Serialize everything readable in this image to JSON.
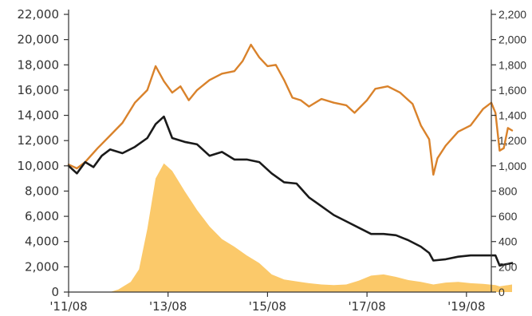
{
  "chart_data": {
    "type": "line",
    "title": "",
    "xlabel": "",
    "ylabel": "",
    "ylabel_right": "",
    "grid": false,
    "legend": "none",
    "left_axis": {
      "ylim": [
        0,
        22000
      ],
      "ticks": [
        "0",
        "2,000",
        "4,000",
        "6,000",
        "8,000",
        "10,000",
        "12,000",
        "14,000",
        "16,000",
        "18,000",
        "20,000",
        "22,000"
      ]
    },
    "right_axis": {
      "ylim": [
        0,
        2200
      ],
      "ticks": [
        "0",
        "200",
        "400",
        "600",
        "800",
        "1,000",
        "1,200",
        "1,400",
        "1,600",
        "1,800",
        "2,000",
        "2,200"
      ]
    },
    "x_axis": {
      "xlim": [
        "2011-08",
        "2020-02"
      ],
      "ticks": [
        {
          "label": "'11/08",
          "date": "2011-08"
        },
        {
          "label": "'13/08",
          "date": "2013-08"
        },
        {
          "label": "'15/08",
          "date": "2015-08"
        },
        {
          "label": "'17/08",
          "date": "2017-08"
        },
        {
          "label": "'19/08",
          "date": "2019-08"
        }
      ]
    },
    "colors": {
      "orange": "#d9822b",
      "black": "#1a1a1a",
      "area": "#fbc96a"
    },
    "series": [
      {
        "type": "line",
        "axis": "left",
        "color": "#d9822b",
        "points": [
          [
            "2011-08",
            10100
          ],
          [
            "2011-10",
            9800
          ],
          [
            "2011-12",
            10300
          ],
          [
            "2012-03",
            11400
          ],
          [
            "2012-06",
            12400
          ],
          [
            "2012-09",
            13400
          ],
          [
            "2012-12",
            15000
          ],
          [
            "2013-03",
            16000
          ],
          [
            "2013-05",
            17900
          ],
          [
            "2013-07",
            16700
          ],
          [
            "2013-09",
            15800
          ],
          [
            "2013-11",
            16300
          ],
          [
            "2014-01",
            15200
          ],
          [
            "2014-03",
            16000
          ],
          [
            "2014-06",
            16800
          ],
          [
            "2014-09",
            17300
          ],
          [
            "2014-12",
            17500
          ],
          [
            "2015-02",
            18300
          ],
          [
            "2015-04",
            19600
          ],
          [
            "2015-06",
            18600
          ],
          [
            "2015-08",
            17900
          ],
          [
            "2015-10",
            18000
          ],
          [
            "2015-12",
            16800
          ],
          [
            "2016-02",
            15400
          ],
          [
            "2016-04",
            15200
          ],
          [
            "2016-06",
            14700
          ],
          [
            "2016-09",
            15300
          ],
          [
            "2016-12",
            15000
          ],
          [
            "2017-03",
            14800
          ],
          [
            "2017-05",
            14200
          ],
          [
            "2017-08",
            15200
          ],
          [
            "2017-10",
            16100
          ],
          [
            "2018-01",
            16300
          ],
          [
            "2018-04",
            15800
          ],
          [
            "2018-07",
            14900
          ],
          [
            "2018-09",
            13200
          ],
          [
            "2018-11",
            12100
          ],
          [
            "2018-12",
            9300
          ],
          [
            "2019-01",
            10600
          ],
          [
            "2019-03",
            11600
          ],
          [
            "2019-06",
            12700
          ],
          [
            "2019-09",
            13200
          ],
          [
            "2019-12",
            14500
          ],
          [
            "2020-02",
            15000
          ],
          [
            "2020-03",
            14200
          ],
          [
            "2020-04",
            11200
          ],
          [
            "2020-05",
            11400
          ],
          [
            "2020-06",
            13000
          ],
          [
            "2020-07",
            12800
          ]
        ]
      },
      {
        "type": "line",
        "axis": "left",
        "color": "#1a1a1a",
        "points": [
          [
            "2011-08",
            10000
          ],
          [
            "2011-10",
            9400
          ],
          [
            "2011-12",
            10300
          ],
          [
            "2012-02",
            9900
          ],
          [
            "2012-04",
            10800
          ],
          [
            "2012-06",
            11300
          ],
          [
            "2012-09",
            11000
          ],
          [
            "2012-12",
            11500
          ],
          [
            "2013-03",
            12200
          ],
          [
            "2013-05",
            13300
          ],
          [
            "2013-07",
            13900
          ],
          [
            "2013-09",
            12200
          ],
          [
            "2013-12",
            11900
          ],
          [
            "2014-03",
            11700
          ],
          [
            "2014-06",
            10800
          ],
          [
            "2014-09",
            11100
          ],
          [
            "2014-12",
            10500
          ],
          [
            "2015-03",
            10500
          ],
          [
            "2015-06",
            10300
          ],
          [
            "2015-09",
            9400
          ],
          [
            "2015-12",
            8700
          ],
          [
            "2016-03",
            8600
          ],
          [
            "2016-06",
            7500
          ],
          [
            "2016-09",
            6800
          ],
          [
            "2016-12",
            6100
          ],
          [
            "2017-03",
            5600
          ],
          [
            "2017-06",
            5100
          ],
          [
            "2017-09",
            4600
          ],
          [
            "2017-12",
            4600
          ],
          [
            "2018-03",
            4500
          ],
          [
            "2018-06",
            4100
          ],
          [
            "2018-09",
            3600
          ],
          [
            "2018-11",
            3100
          ],
          [
            "2018-12",
            2500
          ],
          [
            "2019-03",
            2600
          ],
          [
            "2019-06",
            2800
          ],
          [
            "2019-09",
            2900
          ],
          [
            "2019-12",
            2900
          ],
          [
            "2020-03",
            2900
          ],
          [
            "2020-04",
            2100
          ],
          [
            "2020-07",
            2300
          ]
        ]
      },
      {
        "type": "area",
        "axis": "right",
        "color": "#fbc96a",
        "points": [
          [
            "2011-08",
            0
          ],
          [
            "2012-06",
            0
          ],
          [
            "2012-08",
            20
          ],
          [
            "2012-11",
            80
          ],
          [
            "2013-01",
            180
          ],
          [
            "2013-03",
            500
          ],
          [
            "2013-05",
            900
          ],
          [
            "2013-07",
            1020
          ],
          [
            "2013-09",
            960
          ],
          [
            "2013-12",
            800
          ],
          [
            "2014-03",
            650
          ],
          [
            "2014-06",
            520
          ],
          [
            "2014-09",
            420
          ],
          [
            "2014-12",
            360
          ],
          [
            "2015-03",
            290
          ],
          [
            "2015-06",
            230
          ],
          [
            "2015-09",
            140
          ],
          [
            "2015-12",
            100
          ],
          [
            "2016-03",
            85
          ],
          [
            "2016-06",
            70
          ],
          [
            "2016-09",
            60
          ],
          [
            "2016-12",
            55
          ],
          [
            "2017-03",
            60
          ],
          [
            "2017-06",
            90
          ],
          [
            "2017-09",
            130
          ],
          [
            "2017-12",
            140
          ],
          [
            "2018-03",
            120
          ],
          [
            "2018-06",
            95
          ],
          [
            "2018-09",
            80
          ],
          [
            "2018-12",
            60
          ],
          [
            "2019-03",
            75
          ],
          [
            "2019-06",
            80
          ],
          [
            "2019-09",
            70
          ],
          [
            "2019-12",
            65
          ],
          [
            "2020-03",
            55
          ],
          [
            "2020-04",
            45
          ],
          [
            "2020-07",
            60
          ]
        ]
      }
    ]
  }
}
